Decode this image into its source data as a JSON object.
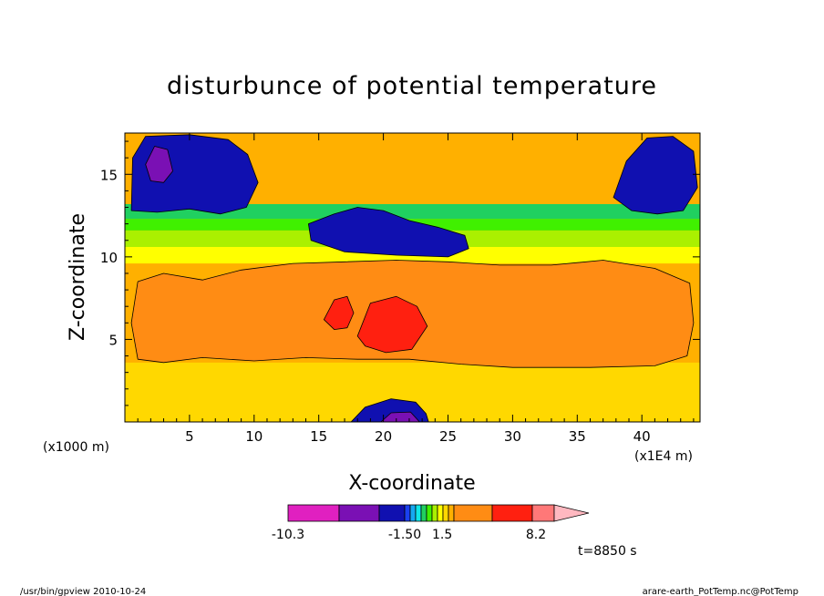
{
  "chart_data": {
    "type": "heatmap",
    "title": "disturbunce of potential temperature",
    "xlabel": "X-coordinate",
    "ylabel": "Z-coordinate",
    "x_unit": "(x1E4 m)",
    "y_unit": "(x1000 m)",
    "xlim": [
      0,
      44.5
    ],
    "ylim": [
      0,
      17.5
    ],
    "x_ticks": [
      5,
      10,
      15,
      20,
      25,
      30,
      35,
      40
    ],
    "y_ticks": [
      5,
      10,
      15
    ],
    "x_tick_labels": [
      "5",
      "10",
      "15",
      "20",
      "25",
      "30",
      "35",
      "40"
    ],
    "y_tick_labels": [
      "5",
      "10",
      "15"
    ],
    "time_label": "t=8850 s",
    "colorbar": {
      "labels": [
        "-10.3",
        "-1.50",
        "1.5",
        "8.2"
      ],
      "label_values": [
        -10.3,
        -1.5,
        1.5,
        8.2
      ],
      "colors": [
        "#e020c0",
        "#7a10b4",
        "#1010b0",
        "#1a40f0",
        "#16a8f0",
        "#10e6e8",
        "#20d060",
        "#40f000",
        "#aaf000",
        "#ffff00",
        "#ffd800",
        "#ffb000",
        "#ff8c14",
        "#ff2010",
        "#ff7878",
        "#ffb8c0"
      ]
    },
    "regions": [
      {
        "level": 12,
        "color": "#ff8c14",
        "desc": "large warm anomaly mid-levels",
        "poly": [
          [
            1,
            3.8
          ],
          [
            0.5,
            6
          ],
          [
            1,
            8.5
          ],
          [
            3,
            9
          ],
          [
            6,
            8.6
          ],
          [
            9,
            9.2
          ],
          [
            13,
            9.6
          ],
          [
            17,
            9.7
          ],
          [
            21,
            9.8
          ],
          [
            25,
            9.7
          ],
          [
            29,
            9.5
          ],
          [
            33,
            9.5
          ],
          [
            37,
            9.8
          ],
          [
            41,
            9.3
          ],
          [
            43.7,
            8.4
          ],
          [
            44,
            6
          ],
          [
            43.5,
            4
          ],
          [
            41,
            3.4
          ],
          [
            36,
            3.3
          ],
          [
            30,
            3.3
          ],
          [
            26,
            3.5
          ],
          [
            22,
            3.8
          ],
          [
            18,
            3.8
          ],
          [
            14,
            3.9
          ],
          [
            10,
            3.7
          ],
          [
            6,
            3.9
          ],
          [
            3,
            3.6
          ]
        ]
      },
      {
        "level": 13,
        "color": "#ff2010",
        "desc": "red warm core",
        "poly": [
          [
            15.4,
            6.2
          ],
          [
            16.2,
            7.4
          ],
          [
            17.2,
            7.6
          ],
          [
            17.7,
            6.6
          ],
          [
            17.2,
            5.7
          ],
          [
            16.2,
            5.6
          ]
        ]
      },
      {
        "level": 13,
        "color": "#ff2010",
        "desc": "red warm streaks",
        "poly": [
          [
            18,
            5.2
          ],
          [
            19,
            7.2
          ],
          [
            21,
            7.6
          ],
          [
            22.6,
            7.0
          ],
          [
            23.4,
            5.8
          ],
          [
            22.2,
            4.4
          ],
          [
            20.2,
            4.2
          ],
          [
            18.6,
            4.6
          ]
        ]
      },
      {
        "level": 1,
        "color": "#1010b0",
        "desc": "upper-left cold anomaly",
        "poly": [
          [
            0.5,
            12.8
          ],
          [
            0.6,
            16
          ],
          [
            1.6,
            17.3
          ],
          [
            5,
            17.4
          ],
          [
            8,
            17.1
          ],
          [
            9.5,
            16.2
          ],
          [
            10.3,
            14.5
          ],
          [
            9.4,
            13.0
          ],
          [
            7.4,
            12.6
          ],
          [
            5.0,
            12.9
          ],
          [
            2.5,
            12.7
          ]
        ]
      },
      {
        "level": 0,
        "color": "#7a10b4",
        "desc": "upper-left core",
        "poly": [
          [
            1.6,
            15.6
          ],
          [
            2.3,
            16.7
          ],
          [
            3.3,
            16.5
          ],
          [
            3.7,
            15.2
          ],
          [
            3.0,
            14.5
          ],
          [
            2.0,
            14.6
          ]
        ]
      },
      {
        "level": 1,
        "color": "#1010b0",
        "desc": "mid cold band",
        "poly": [
          [
            14.2,
            12.0
          ],
          [
            14.4,
            11.0
          ],
          [
            17,
            10.3
          ],
          [
            21,
            10.1
          ],
          [
            25,
            10.0
          ],
          [
            26.6,
            10.5
          ],
          [
            26.3,
            11.3
          ],
          [
            24.2,
            11.8
          ],
          [
            22,
            12.2
          ],
          [
            20,
            12.8
          ],
          [
            18,
            13.0
          ],
          [
            16.2,
            12.6
          ]
        ]
      },
      {
        "level": 1,
        "color": "#1010b0",
        "desc": "upper-right cold anomaly",
        "poly": [
          [
            37.8,
            13.6
          ],
          [
            38.8,
            15.8
          ],
          [
            40.4,
            17.2
          ],
          [
            42.4,
            17.3
          ],
          [
            44,
            16.4
          ],
          [
            44.3,
            14.2
          ],
          [
            43.2,
            12.8
          ],
          [
            41.2,
            12.6
          ],
          [
            39.2,
            12.8
          ]
        ]
      },
      {
        "level": 1,
        "color": "#1010b0",
        "desc": "lower cold patch",
        "poly": [
          [
            17.5,
            0
          ],
          [
            18.6,
            0.9
          ],
          [
            20.6,
            1.4
          ],
          [
            22.5,
            1.2
          ],
          [
            23.3,
            0.5
          ],
          [
            23.5,
            0
          ]
        ]
      },
      {
        "level": 0,
        "color": "#7a10b4",
        "desc": "lower core",
        "poly": [
          [
            19.8,
            0
          ],
          [
            20.6,
            0.55
          ],
          [
            22.1,
            0.6
          ],
          [
            22.8,
            0
          ]
        ]
      }
    ],
    "regions_note": "approximate filled-contour regions in data units"
  },
  "footer": {
    "left": "/usr/bin/gpview   2010-10-24",
    "right": "arare-earth_PotTemp.nc@PotTemp"
  }
}
